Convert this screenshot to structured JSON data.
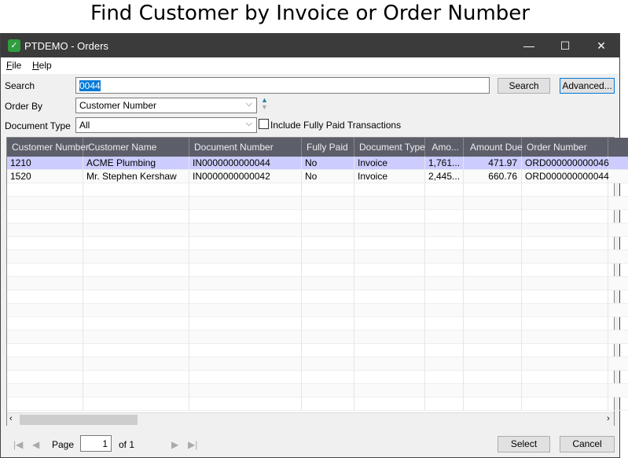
{
  "heading": "Find Customer by Invoice or Order Number",
  "window": {
    "title": "PTDEMO - Orders",
    "minimize": "—",
    "maximize": "☐",
    "close": "✕"
  },
  "menu": [
    "File",
    "Help"
  ],
  "search": {
    "label": "Search",
    "value": "0044",
    "button": "Search",
    "advanced": "Advanced..."
  },
  "order_by": {
    "label": "Order By",
    "value": "Customer Number"
  },
  "document_type": {
    "label": "Document Type",
    "value": "All"
  },
  "include_paid": {
    "label": "Include Fully Paid Transactions",
    "checked": false
  },
  "grid": {
    "columns": [
      "Customer Number",
      "Customer Name",
      "Document Number",
      "Fully Paid",
      "Document Type",
      "Amo...",
      "Amount Due",
      "Order Number"
    ],
    "rows": [
      [
        "1210",
        "ACME Plumbing",
        "IN0000000000044",
        "No",
        "Invoice",
        "1,761...",
        "471.97",
        "ORD000000000046"
      ],
      [
        "1520",
        "Mr. Stephen Kershaw",
        "IN0000000000042",
        "No",
        "Invoice",
        "2,445...",
        "660.76",
        "ORD000000000044"
      ]
    ],
    "selected_row": 0,
    "selected_color": "#ccccff"
  },
  "pager": {
    "page_label": "Page",
    "page": "1",
    "of": "of 1"
  },
  "buttons": {
    "select": "Select",
    "cancel": "Cancel"
  }
}
